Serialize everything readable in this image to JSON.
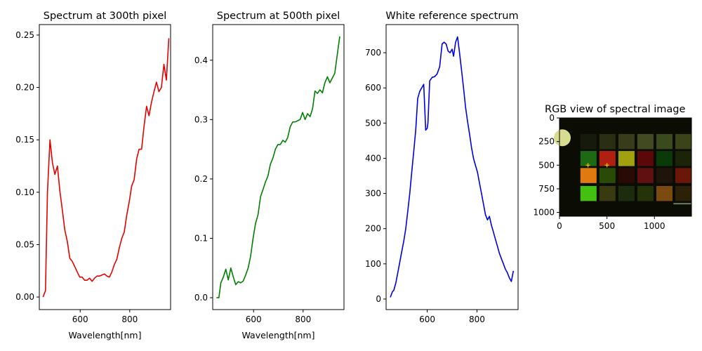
{
  "chart_data": [
    {
      "type": "line",
      "title": "Spectrum at 300th pixel",
      "xlabel": "Wavelength[nm]",
      "ylabel": "",
      "xlim": [
        435,
        965
      ],
      "ylim": [
        -0.012,
        0.26
      ],
      "xticks": [
        600,
        800
      ],
      "yticks": [
        0.0,
        0.05,
        0.1,
        0.15,
        0.2,
        0.25
      ],
      "ytick_labels": [
        "0.00",
        "0.05",
        "0.10",
        "0.15",
        "0.20",
        "0.25"
      ],
      "series": [
        {
          "color": "#e60000",
          "x": [
            450,
            460,
            468,
            478,
            488,
            498,
            508,
            518,
            528,
            538,
            548,
            558,
            568,
            578,
            588,
            598,
            608,
            618,
            628,
            638,
            648,
            658,
            668,
            678,
            688,
            698,
            708,
            718,
            728,
            738,
            748,
            758,
            768,
            778,
            788,
            798,
            808,
            818,
            828,
            838,
            848,
            858,
            868,
            878,
            888,
            898,
            908,
            918,
            928,
            938,
            948,
            958
          ],
          "y": [
            0.0,
            0.006,
            0.1,
            0.15,
            0.128,
            0.117,
            0.125,
            0.101,
            0.083,
            0.064,
            0.053,
            0.037,
            0.034,
            0.029,
            0.024,
            0.019,
            0.019,
            0.016,
            0.016,
            0.018,
            0.015,
            0.018,
            0.02,
            0.02,
            0.021,
            0.022,
            0.02,
            0.019,
            0.024,
            0.031,
            0.036,
            0.047,
            0.056,
            0.062,
            0.078,
            0.091,
            0.106,
            0.112,
            0.132,
            0.141,
            0.141,
            0.163,
            0.182,
            0.173,
            0.186,
            0.196,
            0.205,
            0.196,
            0.2,
            0.222,
            0.207,
            0.247
          ]
        }
      ]
    },
    {
      "type": "line",
      "title": "Spectrum at 500th pixel",
      "xlabel": "Wavelength[nm]",
      "ylabel": "",
      "xlim": [
        435,
        965
      ],
      "ylim": [
        -0.02,
        0.46
      ],
      "xticks": [
        600,
        800
      ],
      "yticks": [
        0.0,
        0.1,
        0.2,
        0.3,
        0.4
      ],
      "ytick_labels": [
        "0.0",
        "0.1",
        "0.2",
        "0.3",
        "0.4"
      ],
      "series": [
        {
          "color": "#008000",
          "x": [
            450,
            460,
            468,
            478,
            488,
            498,
            508,
            518,
            528,
            538,
            548,
            558,
            568,
            578,
            588,
            598,
            608,
            618,
            628,
            638,
            648,
            658,
            668,
            678,
            688,
            698,
            708,
            718,
            728,
            738,
            748,
            758,
            768,
            778,
            788,
            798,
            808,
            818,
            828,
            838,
            848,
            858,
            868,
            878,
            888,
            898,
            908,
            918,
            928,
            938,
            948
          ],
          "y": [
            0.0,
            0.0,
            0.025,
            0.035,
            0.048,
            0.03,
            0.05,
            0.035,
            0.022,
            0.027,
            0.025,
            0.028,
            0.038,
            0.05,
            0.07,
            0.1,
            0.125,
            0.14,
            0.17,
            0.182,
            0.195,
            0.205,
            0.225,
            0.235,
            0.25,
            0.258,
            0.258,
            0.265,
            0.262,
            0.27,
            0.288,
            0.296,
            0.296,
            0.298,
            0.3,
            0.312,
            0.3,
            0.31,
            0.305,
            0.318,
            0.348,
            0.344,
            0.35,
            0.345,
            0.362,
            0.372,
            0.362,
            0.37,
            0.378,
            0.41,
            0.44
          ]
        }
      ]
    },
    {
      "type": "line",
      "title": "White reference spectrum",
      "xlabel": "",
      "ylabel": "",
      "xlim": [
        435,
        965
      ],
      "ylim": [
        -30,
        780
      ],
      "xticks": [
        600,
        800
      ],
      "yticks": [
        0,
        100,
        200,
        300,
        400,
        500,
        600,
        700
      ],
      "ytick_labels": [
        "0",
        "100",
        "200",
        "300",
        "400",
        "500",
        "600",
        "700"
      ],
      "series": [
        {
          "color": "#0000e0",
          "x": [
            452,
            460,
            466,
            474,
            482,
            490,
            498,
            506,
            514,
            522,
            530,
            538,
            546,
            554,
            562,
            570,
            578,
            586,
            594,
            600,
            603,
            610,
            620,
            630,
            640,
            650,
            660,
            668,
            676,
            684,
            692,
            700,
            706,
            714,
            722,
            730,
            738,
            746,
            754,
            762,
            770,
            778,
            786,
            794,
            802,
            810,
            818,
            826,
            834,
            842,
            850,
            858,
            866,
            874,
            882,
            890,
            898,
            906,
            914,
            922,
            930,
            938,
            946
          ],
          "y": [
            5,
            20,
            25,
            45,
            75,
            105,
            135,
            165,
            200,
            250,
            300,
            360,
            420,
            480,
            570,
            590,
            600,
            610,
            480,
            485,
            500,
            620,
            630,
            632,
            640,
            660,
            725,
            730,
            725,
            705,
            700,
            710,
            690,
            730,
            745,
            700,
            650,
            600,
            545,
            505,
            470,
            430,
            400,
            380,
            360,
            330,
            300,
            270,
            240,
            225,
            235,
            210,
            190,
            170,
            150,
            130,
            115,
            100,
            85,
            75,
            60,
            50,
            80
          ]
        }
      ]
    },
    {
      "type": "image",
      "title": "RGB view of spectral image",
      "xlim": [
        0,
        1390
      ],
      "ylim": [
        1040,
        0
      ],
      "xticks": [
        0,
        500,
        1000
      ],
      "xtick_labels": [
        "0",
        "500",
        "1000"
      ],
      "yticks": [
        0,
        250,
        500,
        750,
        1000
      ],
      "ytick_labels": [
        "0",
        "250",
        "500",
        "750",
        "1000"
      ],
      "markers": [
        {
          "x": 300,
          "y": 500,
          "color": "#f0c000"
        },
        {
          "x": 500,
          "y": 500,
          "color": "#f0c000"
        }
      ]
    }
  ]
}
